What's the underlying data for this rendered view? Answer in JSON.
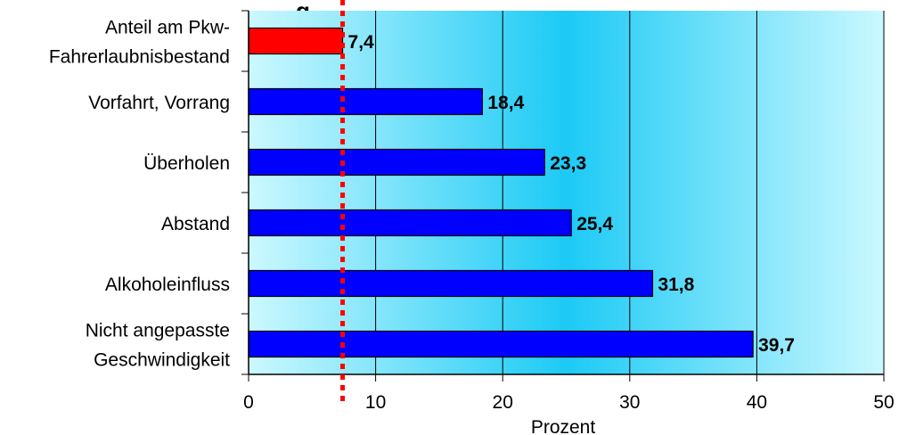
{
  "chart_data": {
    "type": "bar",
    "orientation": "horizontal",
    "title_fragment": "g",
    "categories": [
      [
        "Anteil am Pkw-",
        "Fahrerlaubnisbestand"
      ],
      [
        "Vorfahrt, Vorrang"
      ],
      [
        "Überholen"
      ],
      [
        "Abstand"
      ],
      [
        "Alkoholeinfluss"
      ],
      [
        "Nicht angepasste",
        "Geschwindigkeit"
      ]
    ],
    "values": [
      7.4,
      18.4,
      23.3,
      25.4,
      31.8,
      39.7
    ],
    "value_labels": [
      "7,4",
      "18,4",
      "23,3",
      "25,4",
      "31,8",
      "39,7"
    ],
    "bar_colors": [
      "#ff0000",
      "#0000ff",
      "#0000ff",
      "#0000ff",
      "#0000ff",
      "#0000ff"
    ],
    "xlabel": "Prozent",
    "xlim": [
      0,
      50
    ],
    "xticks": [
      0,
      10,
      20,
      30,
      40,
      50
    ],
    "xtick_labels": [
      "0",
      "10",
      "20",
      "30",
      "40",
      "50"
    ],
    "reference_line": {
      "value": 7.4,
      "style": "dotted",
      "color": "#ff0000"
    },
    "grid": {
      "vertical": true,
      "horizontal": false
    },
    "background": {
      "type": "gradient",
      "edge_color": "#ccf8ff",
      "center_color": "#1ccaf5"
    }
  }
}
